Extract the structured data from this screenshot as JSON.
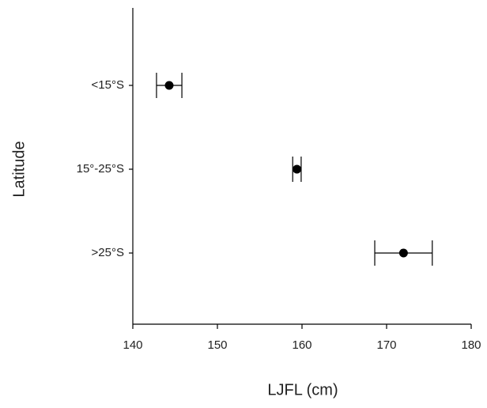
{
  "chart_data": {
    "type": "errorbar",
    "orientation": "horizontal",
    "x_label": "LJFL (cm)",
    "y_label": "Latitude",
    "categories": [
      "<15°S",
      "15°-25°S",
      ">25°S"
    ],
    "values": [
      144.3,
      159.4,
      172.0
    ],
    "errors": [
      1.5,
      0.5,
      3.4
    ],
    "color": "#000000",
    "xlim": [
      140,
      180
    ],
    "xticks": [
      140,
      150,
      160,
      170,
      180
    ]
  }
}
